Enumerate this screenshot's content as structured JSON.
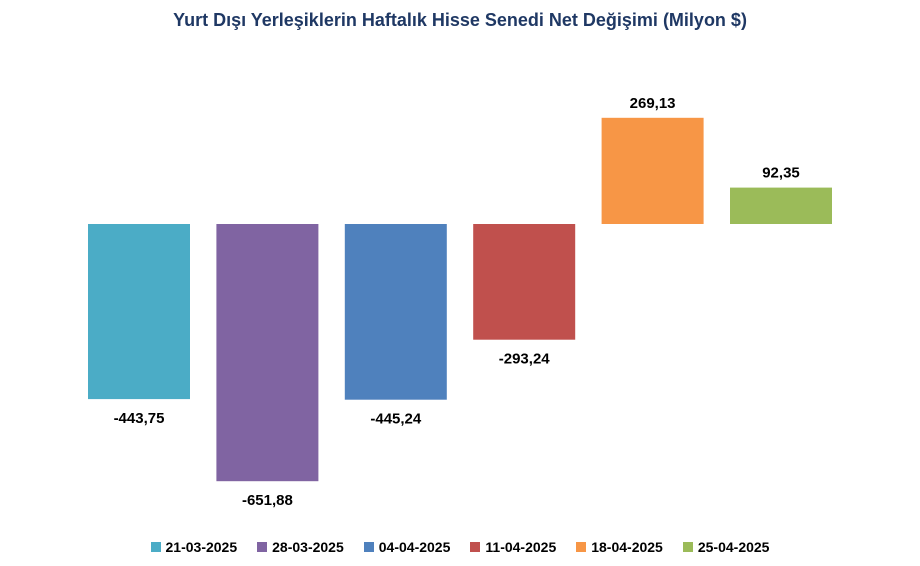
{
  "chart_data": {
    "type": "bar",
    "title": "Yurt Dışı Yerleşiklerin Haftalık Hisse Senedi Net Değişimi (Milyon $)",
    "xlabel": "",
    "ylabel": "",
    "categories": [
      "21-03-2025",
      "28-03-2025",
      "04-04-2025",
      "11-04-2025",
      "18-04-2025",
      "25-04-2025"
    ],
    "values": [
      -443.75,
      -651.88,
      -445.24,
      -293.24,
      269.13,
      92.35
    ],
    "value_labels": [
      "-443,75",
      "-651,88",
      "-445,24",
      "-293,24",
      "269,13",
      "92,35"
    ],
    "colors": [
      "#4bacc6",
      "#8064a2",
      "#4f81bd",
      "#c0504d",
      "#f79646",
      "#9bbb59"
    ],
    "ylim": [
      -700,
      400
    ],
    "grid": false,
    "legend_position": "bottom"
  }
}
